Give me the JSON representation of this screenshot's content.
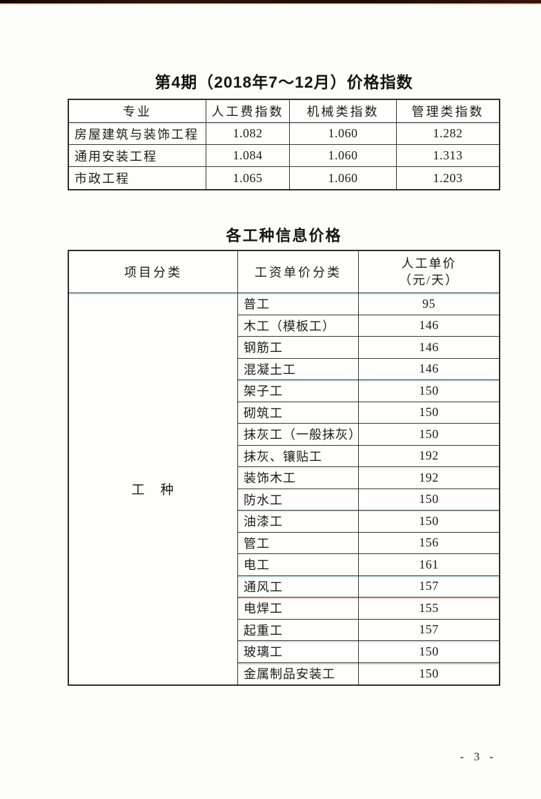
{
  "page": {
    "page_number": "- 3 -"
  },
  "colors": {
    "paper": "#fdfdfb",
    "border": "#2c2c2c",
    "text": "#1b1b1b",
    "scan_strip": "#200b06",
    "scan_strip_edge": "#e9d8a4",
    "fringe_cyan": "#6ec8d7",
    "fringe_red": "#cd5f46"
  },
  "t1": {
    "title": "第4期（2018年7～12月）价格指数",
    "headers": [
      "专业",
      "人工费指数",
      "机械类指数",
      "管理类指数"
    ],
    "rows": [
      {
        "label": "房屋建筑与装饰工程",
        "labor": "1.082",
        "machinery": "1.060",
        "management": "1.282"
      },
      {
        "label": "通用安装工程",
        "labor": "1.084",
        "machinery": "1.060",
        "management": "1.313"
      },
      {
        "label": "市政工程",
        "labor": "1.065",
        "machinery": "1.060",
        "management": "1.203"
      }
    ]
  },
  "t2": {
    "title": "各工种信息价格",
    "col1_header": "项目分类",
    "col2_header": "工资单价分类",
    "col3_header_line1": "人工单价",
    "col3_header_line2": "（元/天）",
    "category_label": "工　种",
    "rows": [
      {
        "trade": "普工",
        "price": "95"
      },
      {
        "trade": "木工（模板工）",
        "price": "146"
      },
      {
        "trade": "钢筋工",
        "price": "146"
      },
      {
        "trade": "混凝土工",
        "price": "146"
      },
      {
        "trade": "架子工",
        "price": "150"
      },
      {
        "trade": "砌筑工",
        "price": "150"
      },
      {
        "trade": "抹灰工（一般抹灰）",
        "price": "150"
      },
      {
        "trade": "抹灰、镶贴工",
        "price": "192"
      },
      {
        "trade": "装饰木工",
        "price": "192"
      },
      {
        "trade": "防水工",
        "price": "150"
      },
      {
        "trade": "油漆工",
        "price": "150"
      },
      {
        "trade": "管工",
        "price": "156"
      },
      {
        "trade": "电工",
        "price": "161"
      },
      {
        "trade": "通风工",
        "price": "157"
      },
      {
        "trade": "电焊工",
        "price": "155"
      },
      {
        "trade": "起重工",
        "price": "157"
      },
      {
        "trade": "玻璃工",
        "price": "150"
      },
      {
        "trade": "金属制品安装工",
        "price": "150"
      }
    ]
  }
}
